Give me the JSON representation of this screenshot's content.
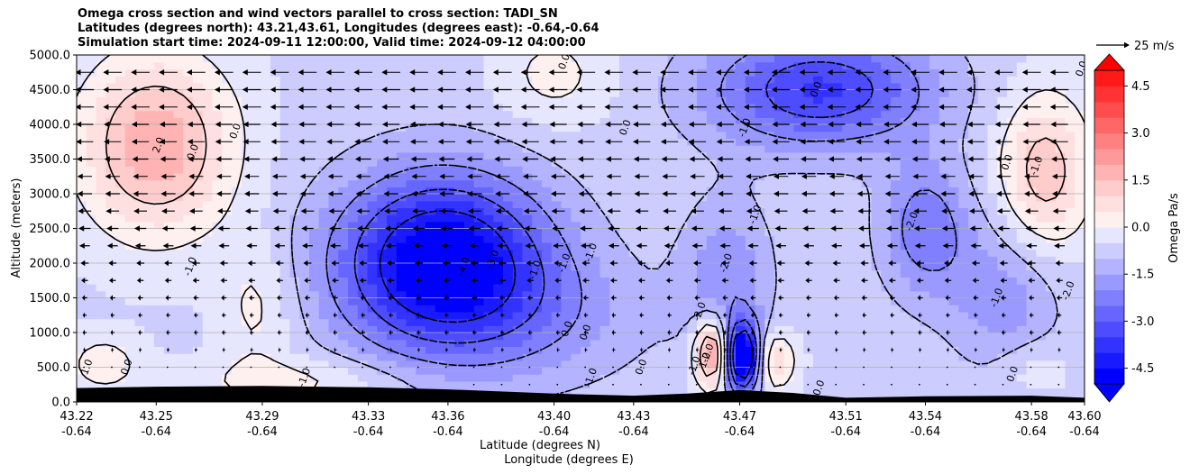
{
  "chart_data": {
    "type": "heatmap",
    "title_lines": [
      "Omega cross section and wind vectors parallel to cross section: TADI_SN",
      "Latitudes (degrees north): 43.21,43.61, Longitudes (degrees east): -0.64,-0.64",
      "Simulation start time: 2024-09-11 12:00:00, Valid time: 2024-09-12 04:00:00"
    ],
    "ylabel": "Altitude (meters)",
    "xlabel_lines": [
      "Latitude (degrees N)",
      "Longitude (degrees E)"
    ],
    "ylim": [
      0,
      5000
    ],
    "xlim": [
      43.22,
      43.6
    ],
    "y_ticks": [
      "0.0",
      "500.0",
      "1000.0",
      "1500.0",
      "2000.0",
      "2500.0",
      "3000.0",
      "3500.0",
      "4000.0",
      "4500.0",
      "5000.0"
    ],
    "y_tick_values": [
      0,
      500,
      1000,
      1500,
      2000,
      2500,
      3000,
      3500,
      4000,
      4500,
      5000
    ],
    "x_tick_values": [
      43.22,
      43.25,
      43.29,
      43.33,
      43.36,
      43.4,
      43.43,
      43.47,
      43.51,
      43.54,
      43.58,
      43.6
    ],
    "x_ticks_lat": [
      "43.22",
      "43.25",
      "43.29",
      "43.33",
      "43.36",
      "43.40",
      "43.43",
      "43.47",
      "43.51",
      "43.54",
      "43.58",
      "43.60"
    ],
    "x_ticks_lon": [
      "-0.64",
      "-0.64",
      "-0.64",
      "-0.64",
      "-0.64",
      "-0.64",
      "-0.64",
      "-0.64",
      "-0.64",
      "-0.64",
      "-0.64",
      "-0.64"
    ],
    "grid": "horizontal",
    "colorbar": {
      "label": "Omega Pa/s",
      "range": [
        -5,
        5
      ],
      "ticks": [
        "4.5",
        "3.0",
        "1.5",
        "0.0",
        "-1.5",
        "-3.0",
        "-4.5"
      ],
      "tick_values": [
        4.5,
        3.0,
        1.5,
        0.0,
        -1.5,
        -3.0,
        -4.5
      ],
      "extend": "both",
      "colors_low_to_high": [
        "#0000ff",
        "#1a1aff",
        "#3333ff",
        "#4d4dff",
        "#6666ff",
        "#8080ff",
        "#9999ff",
        "#b3b3ff",
        "#ccccff",
        "#e6e6ff",
        "#fff0f0",
        "#ffe0e0",
        "#ffcccc",
        "#ffb3b3",
        "#ff9999",
        "#ff8080",
        "#ff6666",
        "#ff4d4d",
        "#ff3333",
        "#ff1a1a"
      ]
    },
    "wind_key": {
      "label": "25 m/s",
      "speed": 25
    },
    "omega_features": [
      {
        "lat": 43.25,
        "alt": 3700,
        "omega": 2.5,
        "sx": 0.02,
        "sy": 900
      },
      {
        "lat": 43.288,
        "alt": 1400,
        "omega": 0.8,
        "sx": 0.01,
        "sy": 700
      },
      {
        "lat": 43.23,
        "alt": 550,
        "omega": 0.9,
        "sx": 0.01,
        "sy": 300
      },
      {
        "lat": 43.305,
        "alt": 300,
        "omega": 0.8,
        "sx": 0.03,
        "sy": 250
      },
      {
        "lat": 43.358,
        "alt": 2000,
        "omega": -4.8,
        "sx": 0.028,
        "sy": 900
      },
      {
        "lat": 43.46,
        "alt": 700,
        "omega": 3.5,
        "sx": 0.005,
        "sy": 350
      },
      {
        "lat": 43.471,
        "alt": 650,
        "omega": -5.5,
        "sx": 0.005,
        "sy": 350
      },
      {
        "lat": 43.482,
        "alt": 600,
        "omega": 1.8,
        "sx": 0.006,
        "sy": 300
      },
      {
        "lat": 43.465,
        "alt": 1800,
        "omega": -1.3,
        "sx": 0.012,
        "sy": 800
      },
      {
        "lat": 43.5,
        "alt": 4500,
        "omega": -3.0,
        "sx": 0.03,
        "sy": 600
      },
      {
        "lat": 43.54,
        "alt": 2500,
        "omega": -1.8,
        "sx": 0.012,
        "sy": 700
      },
      {
        "lat": 43.585,
        "alt": 3300,
        "omega": 2.0,
        "sx": 0.012,
        "sy": 800
      },
      {
        "lat": 43.4,
        "alt": 4700,
        "omega": 0.8,
        "sx": 0.015,
        "sy": 500
      },
      {
        "lat": 43.57,
        "alt": 1500,
        "omega": -1.2,
        "sx": 0.015,
        "sy": 800
      },
      {
        "lat": 43.58,
        "alt": 500,
        "omega": 0.6,
        "sx": 0.01,
        "sy": 300
      },
      {
        "lat": 43.4,
        "alt": 1200,
        "omega": -0.8,
        "sx": 0.03,
        "sy": 700
      }
    ],
    "contour_levels": [
      -4.0,
      -3.0,
      -2.0,
      -1.0,
      0.0,
      1.0,
      2.0
    ],
    "contour_labels": [
      {
        "text": "-4.0",
        "lat": 43.366,
        "alt": 1950
      },
      {
        "text": "-3.0",
        "lat": 43.377,
        "alt": 2050
      },
      {
        "text": "-1.0",
        "lat": 43.393,
        "alt": 1900
      },
      {
        "text": "-1.0",
        "lat": 43.263,
        "alt": 1950
      },
      {
        "text": "2.0",
        "lat": 43.251,
        "alt": 3700
      },
      {
        "text": "0.0",
        "lat": 43.264,
        "alt": 3600
      },
      {
        "text": "0.0",
        "lat": 43.28,
        "alt": 3900
      },
      {
        "text": "0.0",
        "lat": 43.427,
        "alt": 3950
      },
      {
        "text": "-1.0",
        "lat": 43.472,
        "alt": 3950
      },
      {
        "text": "-1.0",
        "lat": 43.476,
        "alt": 2700
      },
      {
        "text": "0.0",
        "lat": 43.499,
        "alt": 4500
      },
      {
        "text": "-2.0",
        "lat": 43.535,
        "alt": 2600
      },
      {
        "text": "0.0",
        "lat": 43.571,
        "alt": 3450
      },
      {
        "text": "-1.0",
        "lat": 43.582,
        "alt": 3400
      },
      {
        "text": "-1.0",
        "lat": 43.567,
        "alt": 1500
      },
      {
        "text": "-2.0",
        "lat": 43.594,
        "alt": 1600
      },
      {
        "text": "-2.0",
        "lat": 43.465,
        "alt": 2000
      },
      {
        "text": "-2.0",
        "lat": 43.455,
        "alt": 1300
      },
      {
        "text": "-2.0",
        "lat": 43.458,
        "alt": 700
      },
      {
        "text": "1.0",
        "lat": 43.457,
        "alt": 600
      },
      {
        "text": "-1.0",
        "lat": 43.453,
        "alt": 520
      },
      {
        "text": "-1.0",
        "lat": 43.414,
        "alt": 350
      },
      {
        "text": "0.0",
        "lat": 43.433,
        "alt": 500
      },
      {
        "text": "0.0",
        "lat": 43.405,
        "alt": 1050
      },
      {
        "text": "0.0",
        "lat": 43.412,
        "alt": 1000
      },
      {
        "text": "-1.0",
        "lat": 43.306,
        "alt": 350
      },
      {
        "text": "0.0",
        "lat": 43.239,
        "alt": 500
      },
      {
        "text": "1.0",
        "lat": 43.224,
        "alt": 500
      },
      {
        "text": "0.0",
        "lat": 43.5,
        "alt": 200
      },
      {
        "text": "0.0",
        "lat": 43.573,
        "alt": 400
      },
      {
        "text": "0.0",
        "lat": 43.599,
        "alt": 4800
      },
      {
        "text": "0.0",
        "lat": 43.404,
        "alt": 4900
      },
      {
        "text": "-1.0",
        "lat": 43.404,
        "alt": 2000
      },
      {
        "text": "-1.0",
        "lat": 43.414,
        "alt": 2150
      }
    ],
    "terrain_altitude": [
      [
        43.22,
        200
      ],
      [
        43.25,
        220
      ],
      [
        43.29,
        230
      ],
      [
        43.33,
        210
      ],
      [
        43.36,
        180
      ],
      [
        43.4,
        120
      ],
      [
        43.43,
        90
      ],
      [
        43.45,
        120
      ],
      [
        43.47,
        170
      ],
      [
        43.49,
        130
      ],
      [
        43.51,
        60
      ],
      [
        43.54,
        80
      ],
      [
        43.58,
        90
      ],
      [
        43.6,
        60
      ]
    ],
    "wind_vectors": {
      "levels_alt": [
        250,
        500,
        750,
        1000,
        1250,
        1500,
        1750,
        2000,
        2250,
        2500,
        2750,
        3000,
        3250,
        3500,
        3750,
        4000,
        4250,
        4500,
        4750
      ],
      "lat_spacing": 0.0105,
      "v_meridional_ms_by_level": [
        -1,
        -1,
        -2,
        -3,
        -3,
        -4,
        -5,
        -6,
        -8,
        -9,
        -10,
        -11,
        -11,
        -12,
        -13,
        -13,
        -14,
        -14,
        -14
      ]
    }
  }
}
